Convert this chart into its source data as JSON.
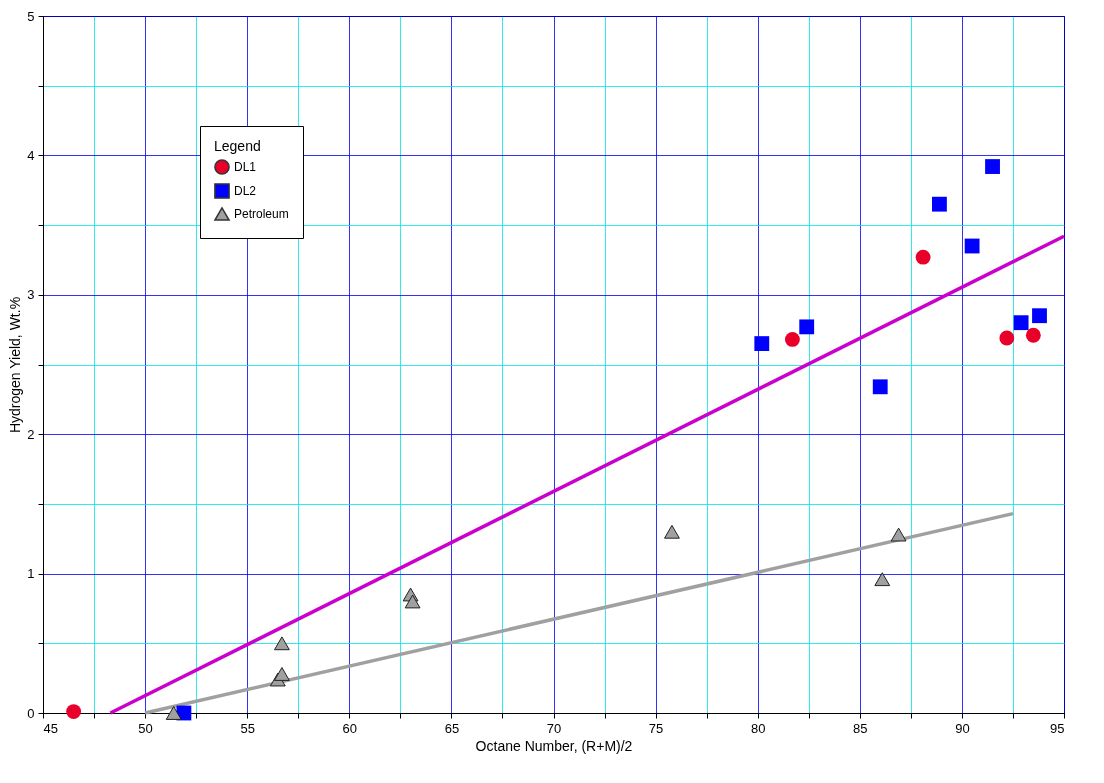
{
  "chart_data": {
    "type": "scatter",
    "xlabel": "Octane Number, (R+M)/2",
    "ylabel": "Hydrogen Yield, Wt.%",
    "legend_title": "Legend",
    "legend": "top left",
    "grid": true,
    "xlim": [
      45,
      95
    ],
    "ylim": [
      0,
      5
    ],
    "xticks": [
      45,
      {
        "value": 47.5,
        "label": null
      },
      50,
      {
        "value": 52.5,
        "label": null
      },
      55,
      {
        "value": 57.5,
        "label": null
      },
      60,
      {
        "value": 62.5,
        "label": null
      },
      65,
      {
        "value": 67.5,
        "label": null
      },
      70,
      {
        "value": 72.5,
        "label": null
      },
      75,
      {
        "value": 77.5,
        "label": null
      },
      80,
      {
        "value": 82.5,
        "label": null
      },
      85,
      {
        "value": 87.5,
        "label": null
      },
      90,
      {
        "value": 92.5,
        "label": null
      },
      95
    ],
    "yticks": [
      0,
      {
        "value": 0.5,
        "label": null
      },
      1,
      {
        "value": 1.5,
        "label": null
      },
      2,
      {
        "value": 2.5,
        "label": null
      },
      3,
      {
        "value": 3.5,
        "label": null
      },
      4,
      {
        "value": 4.5,
        "label": null
      },
      5
    ],
    "series": [
      {
        "name": "DL1",
        "marker": "circle",
        "color": "#e8002a",
        "x": [
          46.5,
          81.7,
          88.1,
          92.2,
          93.5
        ],
        "values": [
          0.01,
          2.68,
          3.27,
          2.69,
          2.71
        ]
      },
      {
        "name": "DL2",
        "marker": "square",
        "color": "#0000ff",
        "x": [
          51.9,
          80.2,
          82.4,
          86.0,
          88.9,
          90.5,
          91.5,
          92.9,
          93.8
        ],
        "values": [
          0.0,
          2.65,
          2.77,
          2.34,
          3.65,
          3.35,
          3.92,
          2.8,
          2.85
        ]
      },
      {
        "name": "Petroleum",
        "marker": "triangle",
        "color": "#a0a0a0",
        "x": [
          51.4,
          56.5,
          56.7,
          56.7,
          63.0,
          63.1,
          75.8,
          86.1,
          86.9
        ],
        "values": [
          0.0,
          0.24,
          0.28,
          0.5,
          0.85,
          0.8,
          1.3,
          0.96,
          1.28
        ]
      },
      {
        "type": "line",
        "color": "#cc00cc",
        "x": [
          48.3,
          95
        ],
        "values": [
          0,
          3.42
        ]
      },
      {
        "type": "line",
        "color": "#a0a0a0",
        "x": [
          50,
          92.5
        ],
        "values": [
          0,
          1.43
        ]
      }
    ]
  }
}
